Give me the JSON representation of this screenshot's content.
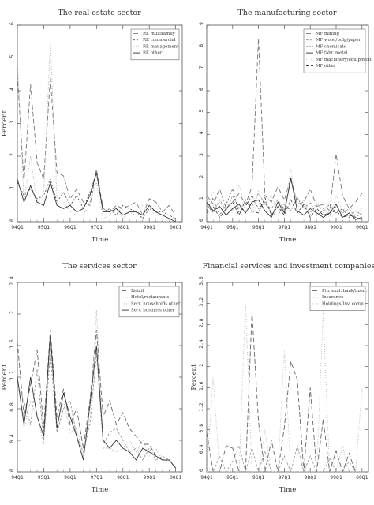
{
  "chart_data": [
    {
      "type": "line",
      "title": "The real estate sector",
      "xlabel": "Time",
      "ylabel": "Percent",
      "xlim": [
        1994.0,
        2000.25
      ],
      "ylim": [
        0,
        6
      ],
      "yticks": [
        0,
        1,
        2,
        3,
        4,
        5,
        6
      ],
      "xtick_labels": [
        "94Q1",
        "95Q1",
        "96Q1",
        "97Q1",
        "98Q1",
        "99Q1",
        "00Q1"
      ],
      "legend_position": "top-right",
      "x": [
        1994.0,
        1994.25,
        1994.5,
        1994.75,
        1995.0,
        1995.25,
        1995.5,
        1995.75,
        1996.0,
        1996.25,
        1996.5,
        1996.75,
        1997.0,
        1997.25,
        1997.5,
        1997.75,
        1998.0,
        1998.25,
        1998.5,
        1998.75,
        1999.0,
        1999.25,
        1999.5,
        1999.75,
        2000.0
      ],
      "series": [
        {
          "name": "RE multifamily",
          "color": "#777777",
          "dash": "6,3",
          "values": [
            4.5,
            1.2,
            4.2,
            1.8,
            1.3,
            4.4,
            1.5,
            1.4,
            0.7,
            1.0,
            0.6,
            0.5,
            1.6,
            0.4,
            0.3,
            0.5,
            0.4,
            0.5,
            0.6,
            0.2,
            0.7,
            0.6,
            0.3,
            0.5,
            0.2
          ]
        },
        {
          "name": "RE commercial",
          "color": "#555555",
          "dash": "2,2",
          "values": [
            1.2,
            0.8,
            1.0,
            0.7,
            0.8,
            1.3,
            0.6,
            0.9,
            0.5,
            0.8,
            0.4,
            0.9,
            1.5,
            0.3,
            0.4,
            0.2,
            0.5,
            0.4,
            0.3,
            0.1,
            0.4,
            0.3,
            0.3,
            0.2,
            0.1
          ]
        },
        {
          "name": "RE management",
          "color": "#aaaaaa",
          "dash": "1,2",
          "values": [
            5.0,
            0.6,
            2.0,
            0.5,
            0.9,
            5.5,
            0.7,
            0.6,
            0.3,
            0.2,
            0.2,
            0.6,
            1.2,
            0.1,
            0.2,
            0.4,
            0.1,
            0.3,
            0.2,
            0.5,
            0.2,
            0.3,
            0.2,
            0.1,
            0.1
          ]
        },
        {
          "name": "RE other",
          "color": "#333333",
          "dash": "",
          "values": [
            1.3,
            0.6,
            1.1,
            0.6,
            0.5,
            1.2,
            0.5,
            0.4,
            0.5,
            0.3,
            0.4,
            0.8,
            1.5,
            0.3,
            0.3,
            0.4,
            0.2,
            0.3,
            0.3,
            0.2,
            0.5,
            0.3,
            0.2,
            0.1,
            0.0
          ]
        }
      ]
    },
    {
      "type": "line",
      "title": "The manufacturing sector",
      "xlabel": "Time",
      "ylabel": "",
      "xlim": [
        1994.0,
        2000.25
      ],
      "ylim": [
        0,
        9
      ],
      "yticks": [
        0,
        1,
        2,
        3,
        4,
        5,
        6,
        7,
        8,
        9
      ],
      "xtick_labels": [
        "94Q1",
        "95Q1",
        "96Q1",
        "97Q1",
        "98Q1",
        "99Q1",
        "00Q1"
      ],
      "legend_position": "top-right",
      "x": [
        1994.0,
        1994.25,
        1994.5,
        1994.75,
        1995.0,
        1995.25,
        1995.5,
        1995.75,
        1996.0,
        1996.25,
        1996.5,
        1996.75,
        1997.0,
        1997.25,
        1997.5,
        1997.75,
        1998.0,
        1998.25,
        1998.5,
        1998.75,
        1999.0,
        1999.25,
        1999.5,
        1999.75,
        2000.0
      ],
      "series": [
        {
          "name": "MF mining",
          "color": "#777777",
          "dash": "6,3",
          "values": [
            1.2,
            0.8,
            1.5,
            0.6,
            0.9,
            1.3,
            0.8,
            1.6,
            8.4,
            1.2,
            0.9,
            1.6,
            1.0,
            2.0,
            0.8,
            0.9,
            1.5,
            0.7,
            0.8,
            0.5,
            3.1,
            1.2,
            0.6,
            0.9,
            1.3
          ]
        },
        {
          "name": "MF wood/pulp/paper",
          "color": "#999999",
          "dash": "3,2",
          "values": [
            0.8,
            0.4,
            1.0,
            0.5,
            1.2,
            0.6,
            0.9,
            0.7,
            1.3,
            0.8,
            0.6,
            1.0,
            0.5,
            1.9,
            0.9,
            0.7,
            0.4,
            0.8,
            0.6,
            0.3,
            0.7,
            0.4,
            0.6,
            0.2,
            0.4
          ]
        },
        {
          "name": "MF chemicals",
          "color": "#666666",
          "dash": "2,2",
          "values": [
            0.5,
            1.1,
            0.3,
            0.8,
            1.5,
            0.4,
            0.7,
            1.2,
            0.6,
            0.9,
            0.4,
            0.3,
            0.8,
            0.5,
            1.1,
            0.6,
            0.9,
            0.3,
            0.5,
            0.8,
            0.4,
            0.6,
            0.2,
            0.5,
            0.3
          ]
        },
        {
          "name": "MF fabr. metal",
          "color": "#333333",
          "dash": "",
          "values": [
            0.9,
            0.5,
            0.7,
            0.3,
            0.6,
            0.8,
            0.4,
            0.9,
            1.0,
            0.5,
            0.2,
            0.9,
            0.4,
            2.0,
            0.5,
            0.3,
            0.6,
            0.4,
            0.2,
            0.4,
            0.8,
            0.2,
            0.4,
            0.1,
            0.2
          ]
        },
        {
          "name": "MF machinery/equipment",
          "color": "#bbbbbb",
          "dash": "1,2",
          "values": [
            0.6,
            1.4,
            0.9,
            1.0,
            0.5,
            1.7,
            0.6,
            0.4,
            1.4,
            0.8,
            1.2,
            0.5,
            0.7,
            2.4,
            0.6,
            1.0,
            0.3,
            0.9,
            0.4,
            0.2,
            1.2,
            0.5,
            0.8,
            0.3,
            0.6
          ]
        },
        {
          "name": "MF other",
          "color": "#444444",
          "dash": "4,2",
          "values": [
            0.4,
            0.7,
            0.2,
            0.6,
            0.9,
            0.3,
            1.0,
            0.5,
            0.4,
            1.1,
            0.3,
            0.7,
            0.3,
            1.0,
            0.4,
            0.8,
            0.2,
            0.6,
            0.3,
            0.4,
            0.5,
            0.2,
            0.3,
            0.2,
            0.1
          ]
        }
      ]
    },
    {
      "type": "line",
      "title": "The services sector",
      "xlabel": "Time",
      "ylabel": "Percent",
      "xlim": [
        1994.0,
        2000.25
      ],
      "ylim": [
        0,
        2.4
      ],
      "yticks": [
        0,
        0.4,
        0.8,
        1.2,
        1.6,
        2.0,
        2.4
      ],
      "xtick_labels": [
        "94Q1",
        "95Q1",
        "96Q1",
        "97Q1",
        "98Q1",
        "99Q1",
        "00Q1"
      ],
      "legend_position": "top-right",
      "x": [
        1994.0,
        1994.25,
        1994.5,
        1994.75,
        1995.0,
        1995.25,
        1995.5,
        1995.75,
        1996.0,
        1996.25,
        1996.5,
        1996.75,
        1997.0,
        1997.25,
        1997.5,
        1997.75,
        1998.0,
        1998.25,
        1998.5,
        1998.75,
        1999.0,
        1999.25,
        1999.5,
        1999.75,
        2000.0
      ],
      "series": [
        {
          "name": "Retail",
          "color": "#666666",
          "dash": "6,3",
          "values": [
            1.65,
            0.7,
            1.1,
            1.55,
            0.55,
            1.8,
            0.7,
            1.05,
            0.6,
            0.8,
            0.3,
            0.9,
            1.8,
            0.7,
            0.9,
            0.6,
            0.75,
            0.55,
            0.45,
            0.35,
            0.35,
            0.2,
            0.15,
            0.15,
            0.05
          ]
        },
        {
          "name": "Hotel/restaurants",
          "color": "#999999",
          "dash": "3,2",
          "values": [
            1.1,
            0.9,
            0.6,
            1.3,
            0.4,
            1.5,
            0.5,
            0.8,
            0.9,
            0.45,
            0.25,
            0.6,
            1.5,
            0.35,
            0.5,
            0.55,
            0.4,
            0.25,
            0.3,
            0.15,
            0.3,
            0.15,
            0.2,
            0.15,
            0.05
          ]
        },
        {
          "name": "Serv. households other",
          "color": "#aaaaaa",
          "dash": "1,2",
          "values": [
            1.2,
            0.55,
            0.9,
            0.7,
            0.35,
            1.6,
            0.6,
            0.9,
            0.5,
            0.55,
            0.2,
            0.7,
            2.05,
            0.3,
            0.3,
            0.25,
            0.3,
            0.4,
            0.25,
            0.4,
            0.2,
            0.3,
            0.15,
            0.15,
            0.05
          ]
        },
        {
          "name": "Serv. business other",
          "color": "#333333",
          "dash": "",
          "values": [
            1.2,
            0.6,
            1.2,
            0.7,
            0.45,
            1.75,
            0.55,
            1.0,
            0.7,
            0.45,
            0.15,
            0.85,
            1.6,
            0.4,
            0.3,
            0.4,
            0.3,
            0.25,
            0.15,
            0.3,
            0.25,
            0.2,
            0.15,
            0.15,
            0.05
          ]
        }
      ]
    },
    {
      "type": "line",
      "title": "Financial services and investment companies",
      "xlabel": "Time",
      "ylabel": "Percent",
      "xlim": [
        1994.0,
        2000.25
      ],
      "ylim": [
        0,
        3.6
      ],
      "yticks": [
        0,
        0.4,
        0.8,
        1.2,
        1.6,
        2.0,
        2.4,
        2.8,
        3.2,
        3.6
      ],
      "xtick_labels": [
        "94Q1",
        "95Q1",
        "96Q1",
        "97Q1",
        "98Q1",
        "99Q1",
        "00Q1"
      ],
      "legend_position": "top-right",
      "x": [
        1994.0,
        1994.25,
        1994.5,
        1994.75,
        1995.0,
        1995.25,
        1995.5,
        1995.75,
        1996.0,
        1996.25,
        1996.5,
        1996.75,
        1997.0,
        1997.25,
        1997.5,
        1997.75,
        1998.0,
        1998.25,
        1998.5,
        1998.75,
        1999.0,
        1999.25,
        1999.5,
        1999.75,
        2000.0
      ],
      "series": [
        {
          "name": "Fin. excl. bank/insur.",
          "color": "#666666",
          "dash": "6,3",
          "values": [
            0.75,
            0.0,
            0.0,
            0.5,
            0.45,
            0.0,
            0.0,
            3.05,
            0.95,
            0.0,
            0.6,
            0.0,
            0.85,
            2.1,
            1.75,
            0.0,
            1.6,
            0.0,
            1.0,
            0.0,
            0.4,
            0.0,
            0.35,
            0.0,
            0.0
          ]
        },
        {
          "name": "Insurance",
          "color": "#999999",
          "dash": "3,2",
          "values": [
            0.0,
            0.0,
            0.3,
            0.0,
            0.2,
            0.5,
            0.0,
            0.45,
            0.0,
            0.4,
            0.0,
            0.0,
            0.3,
            0.0,
            0.5,
            0.0,
            0.3,
            0.0,
            0.0,
            0.25,
            0.0,
            0.0,
            0.2,
            0.0,
            0.0
          ]
        },
        {
          "name": "Holdings/Inv. comp",
          "color": "#bbbbbb",
          "dash": "1,2",
          "values": [
            0.0,
            1.8,
            0.0,
            0.0,
            0.0,
            0.0,
            3.2,
            0.0,
            0.0,
            0.8,
            0.0,
            0.0,
            2.3,
            0.0,
            0.0,
            0.0,
            0.0,
            0.0,
            3.05,
            0.0,
            0.0,
            0.5,
            0.0,
            0.0,
            1.6
          ]
        }
      ]
    }
  ]
}
